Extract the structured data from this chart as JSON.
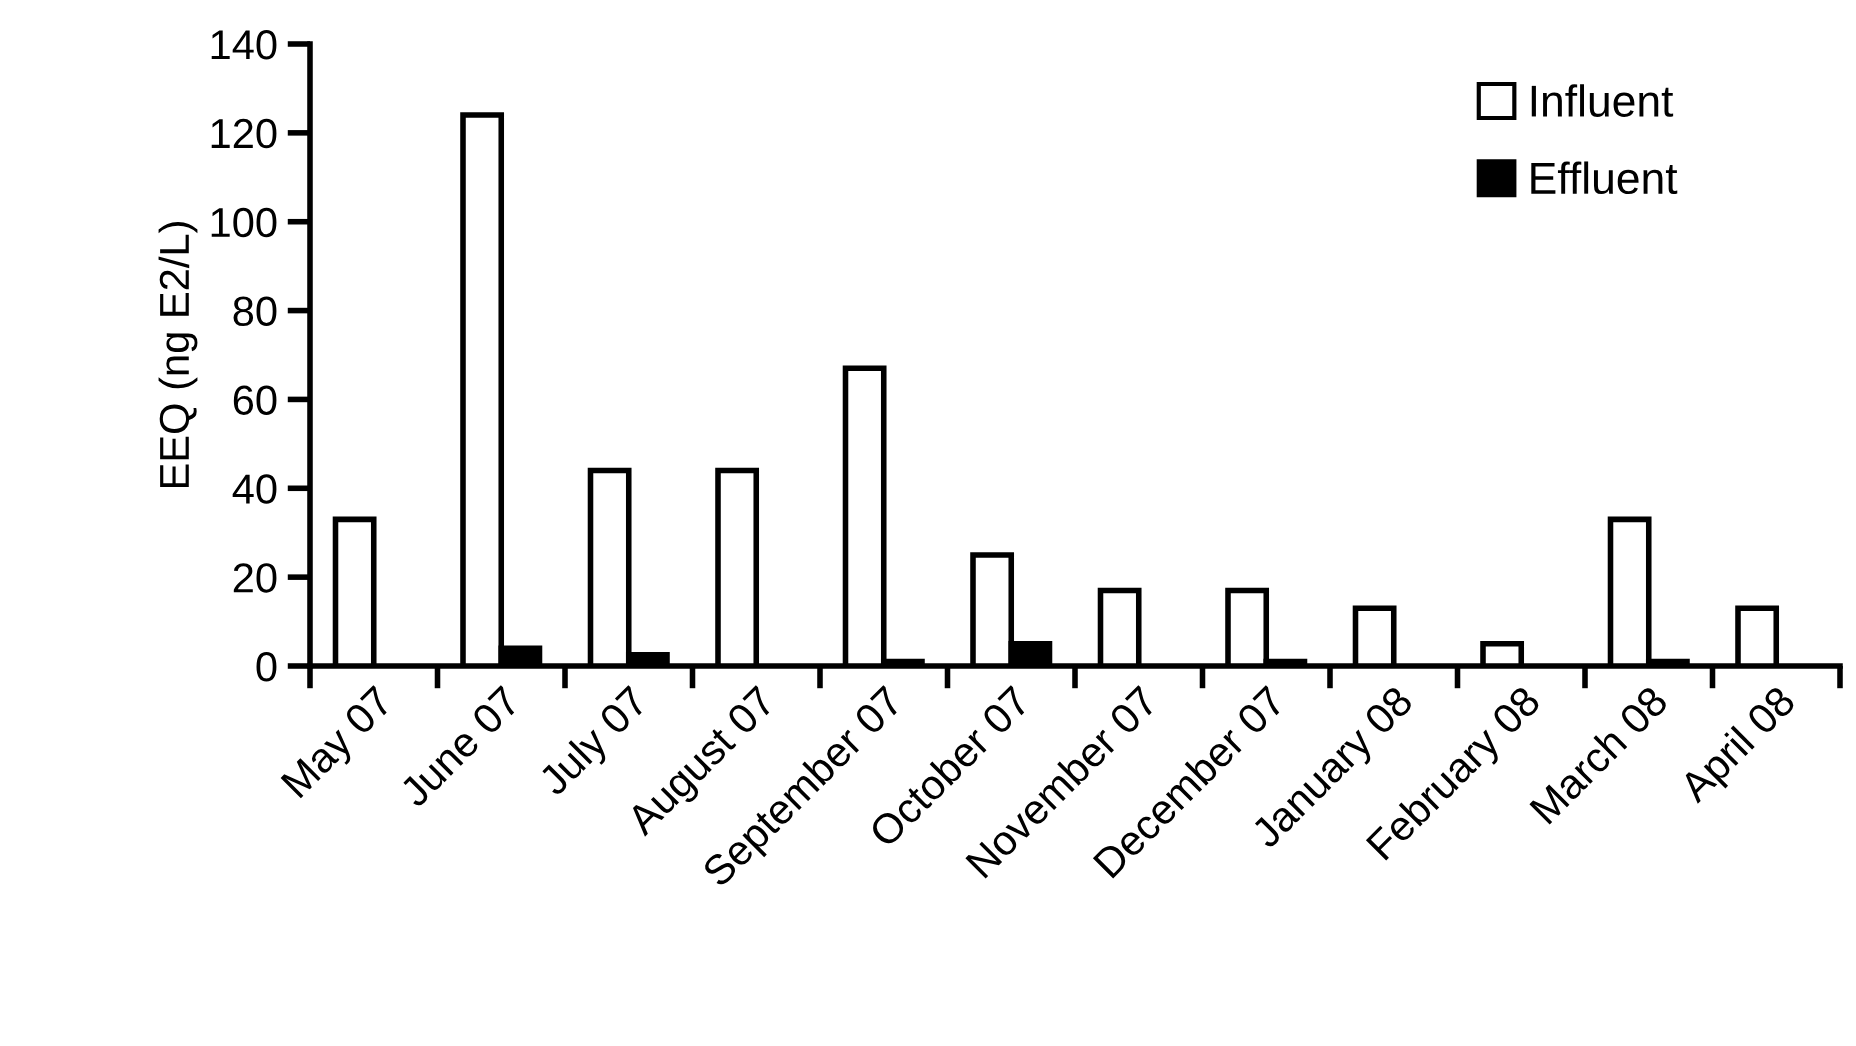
{
  "chart_data": {
    "type": "bar",
    "ylabel": "EEQ (ng E2/L)",
    "categories": [
      "May 07",
      "June 07",
      "July 07",
      "August 07",
      "September 07",
      "October 07",
      "November 07",
      "December 07",
      "January 08",
      "February 08",
      "March 08",
      "April 08"
    ],
    "series": [
      {
        "name": "Influent",
        "color": "#ffffff",
        "values": [
          33,
          124,
          44,
          44,
          67,
          25,
          17,
          17,
          13,
          5,
          33,
          13
        ]
      },
      {
        "name": "Effluent",
        "color": "#000000",
        "values": [
          null,
          4,
          2.5,
          null,
          1,
          5,
          null,
          1,
          null,
          null,
          1,
          null
        ]
      }
    ],
    "ylim": [
      0,
      140
    ],
    "yticks": [
      0,
      20,
      40,
      60,
      80,
      100,
      120,
      140
    ],
    "grid": false,
    "legend": "top right"
  }
}
